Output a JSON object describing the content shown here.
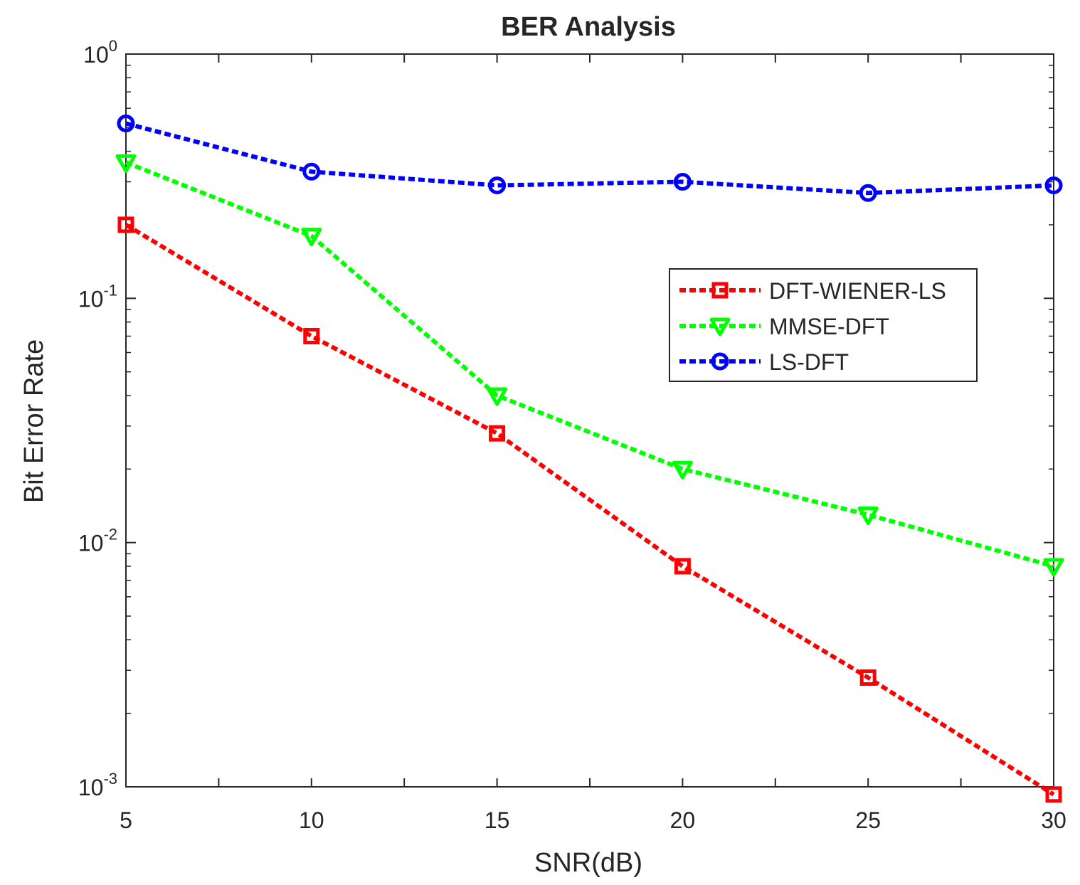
{
  "chart_data": {
    "type": "line",
    "title": "BER Analysis",
    "xlabel": "SNR(dB)",
    "ylabel": "Bit Error Rate",
    "xlim": [
      5,
      30
    ],
    "ylim": [
      0.001,
      1
    ],
    "yscale": "log",
    "x": [
      5,
      10,
      15,
      20,
      25,
      30
    ],
    "x_ticks": [
      "5",
      "10",
      "15",
      "20",
      "25",
      "30"
    ],
    "y_ticks": [
      {
        "base": "10",
        "exp": "0",
        "value": 1
      },
      {
        "base": "10",
        "exp": "-1",
        "value": 0.1
      },
      {
        "base": "10",
        "exp": "-2",
        "value": 0.01
      },
      {
        "base": "10",
        "exp": "-3",
        "value": 0.001
      }
    ],
    "legend_position": "right",
    "grid": false,
    "series": [
      {
        "name": "DFT-WIENER-LS",
        "color": "#ff0000",
        "marker": "square",
        "values": [
          0.2,
          0.07,
          0.028,
          0.008,
          0.0028,
          0.00093
        ]
      },
      {
        "name": "MMSE-DFT",
        "color": "#00ff00",
        "marker": "triangle-down",
        "values": [
          0.36,
          0.18,
          0.04,
          0.02,
          0.013,
          0.008
        ]
      },
      {
        "name": "LS-DFT",
        "color": "#0000ff",
        "marker": "circle",
        "values": [
          0.52,
          0.33,
          0.29,
          0.3,
          0.27,
          0.29
        ]
      }
    ]
  }
}
